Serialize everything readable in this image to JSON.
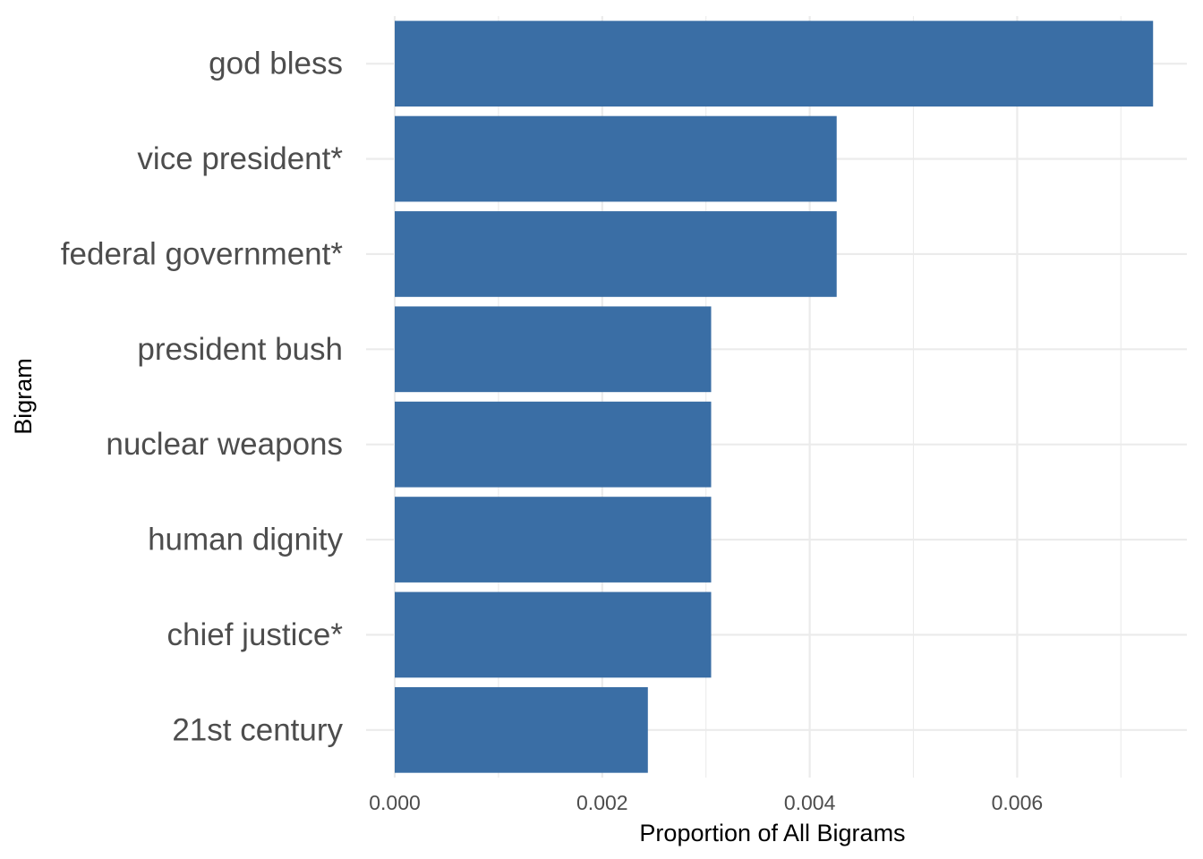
{
  "chart_data": {
    "type": "bar",
    "orientation": "horizontal",
    "categories": [
      "god bless",
      "vice president*",
      "federal government*",
      "president bush",
      "nuclear weapons",
      "human dignity",
      "chief justice*",
      "21st century"
    ],
    "values": [
      0.00731,
      0.00426,
      0.00426,
      0.00305,
      0.00305,
      0.00305,
      0.00305,
      0.00244
    ],
    "xlabel": "Proportion of All Bigrams",
    "ylabel": "Bigram",
    "xlim": [
      0,
      0.0075
    ],
    "x_ticks": [
      0.0,
      0.002,
      0.004,
      0.006
    ],
    "x_tick_labels": [
      "0.000",
      "0.002",
      "0.004",
      "0.006"
    ],
    "bar_color": "#3a6ea5",
    "grid_color": "#ebebeb",
    "grid": true,
    "legend": "none"
  }
}
